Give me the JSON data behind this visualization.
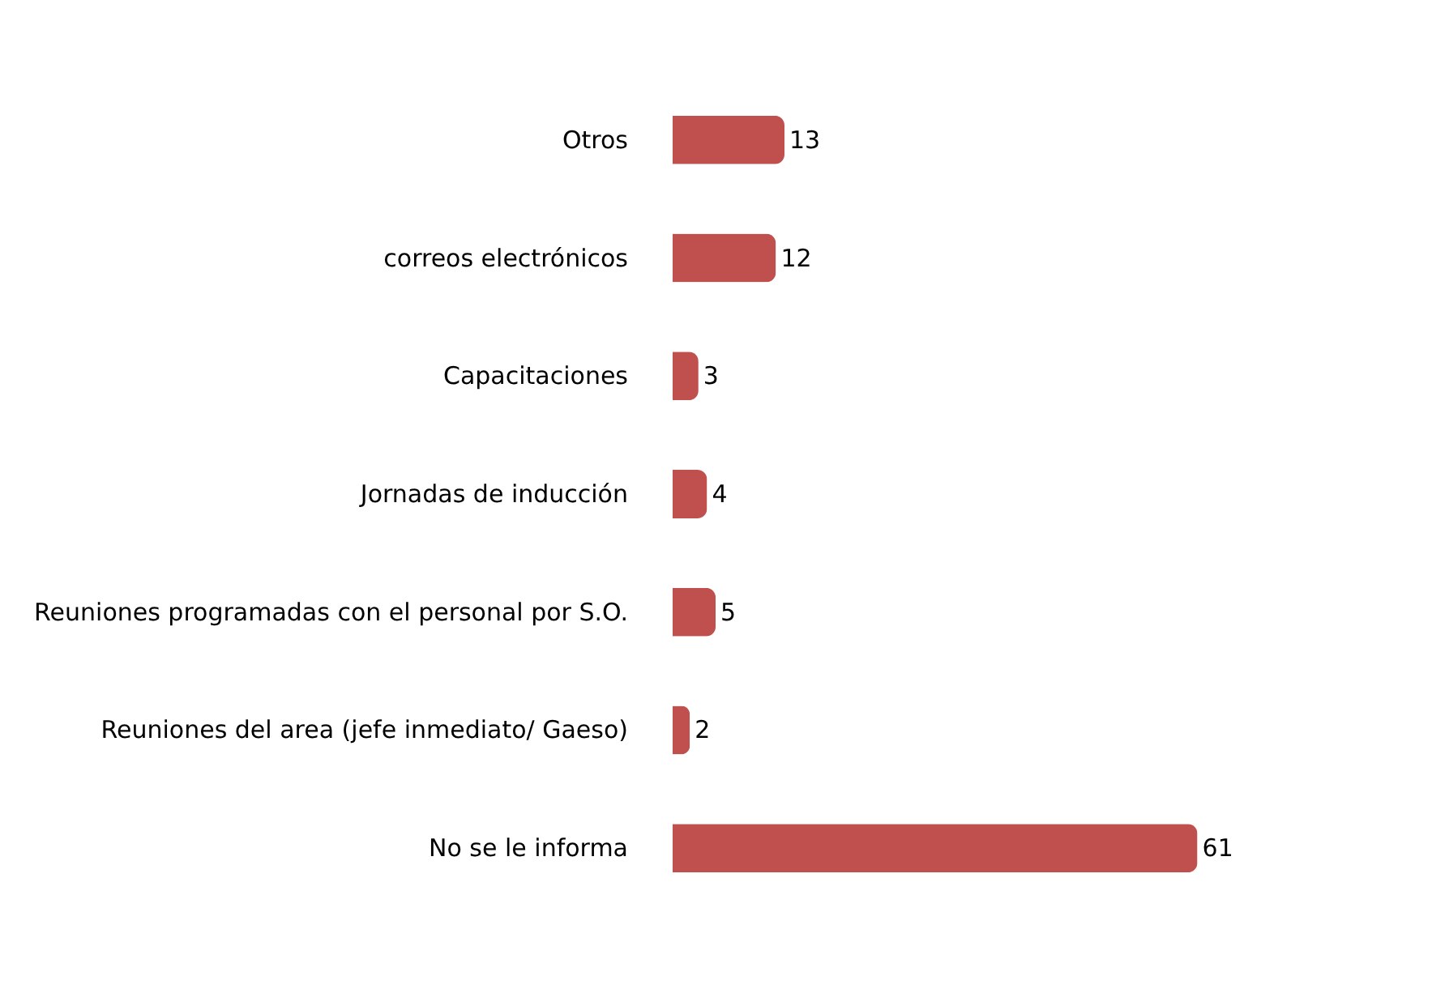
{
  "chart_data": {
    "type": "bar",
    "orientation": "horizontal",
    "categories": [
      "Otros",
      "correos electrónicos",
      "Capacitaciones",
      "Jornadas de inducción",
      "Reuniones programadas con el personal por S.O.",
      "Reuniones del area (jefe inmediato/ Gaeso)",
      "No se le informa"
    ],
    "values": [
      13,
      12,
      3,
      4,
      5,
      2,
      61
    ],
    "color": "#c0504d",
    "data_labels": true
  }
}
